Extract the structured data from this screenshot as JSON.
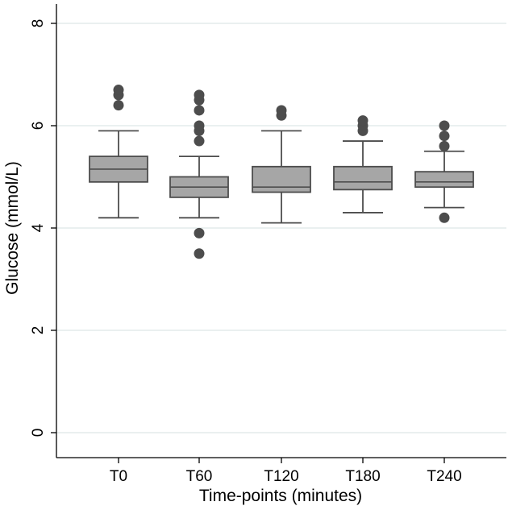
{
  "chart_data": {
    "type": "boxplot",
    "title": "",
    "xlabel": "Time-points (minutes)",
    "ylabel": "Glucose (mmol/L)",
    "ylim": [
      0,
      8
    ],
    "yticks": [
      0,
      2,
      4,
      6,
      8
    ],
    "grid": true,
    "categories": [
      "T0",
      "T60",
      "T120",
      "T180",
      "T240"
    ],
    "boxes": [
      {
        "category": "T0",
        "whisker_low": 4.2,
        "q1": 4.9,
        "median": 5.15,
        "q3": 5.4,
        "whisker_high": 5.9,
        "outliers": [
          6.4,
          6.6,
          6.7
        ]
      },
      {
        "category": "T60",
        "whisker_low": 4.2,
        "q1": 4.6,
        "median": 4.8,
        "q3": 5.0,
        "whisker_high": 5.4,
        "outliers": [
          3.5,
          3.9,
          5.7,
          5.9,
          6.0,
          6.3,
          6.5,
          6.6
        ]
      },
      {
        "category": "T120",
        "whisker_low": 4.1,
        "q1": 4.7,
        "median": 4.8,
        "q3": 5.2,
        "whisker_high": 5.9,
        "outliers": [
          6.2,
          6.3
        ]
      },
      {
        "category": "T180",
        "whisker_low": 4.3,
        "q1": 4.75,
        "median": 4.9,
        "q3": 5.2,
        "whisker_high": 5.7,
        "outliers": [
          5.9,
          6.0,
          6.1
        ]
      },
      {
        "category": "T240",
        "whisker_low": 4.4,
        "q1": 4.8,
        "median": 4.9,
        "q3": 5.1,
        "whisker_high": 5.5,
        "outliers": [
          4.2,
          5.6,
          5.8,
          6.0
        ]
      }
    ],
    "colors": {
      "box_fill": "#a6a6a6",
      "box_stroke": "#4d4d4d",
      "outlier": "#4d4d4d",
      "grid": "#e3ecec",
      "axis": "#000000"
    }
  }
}
